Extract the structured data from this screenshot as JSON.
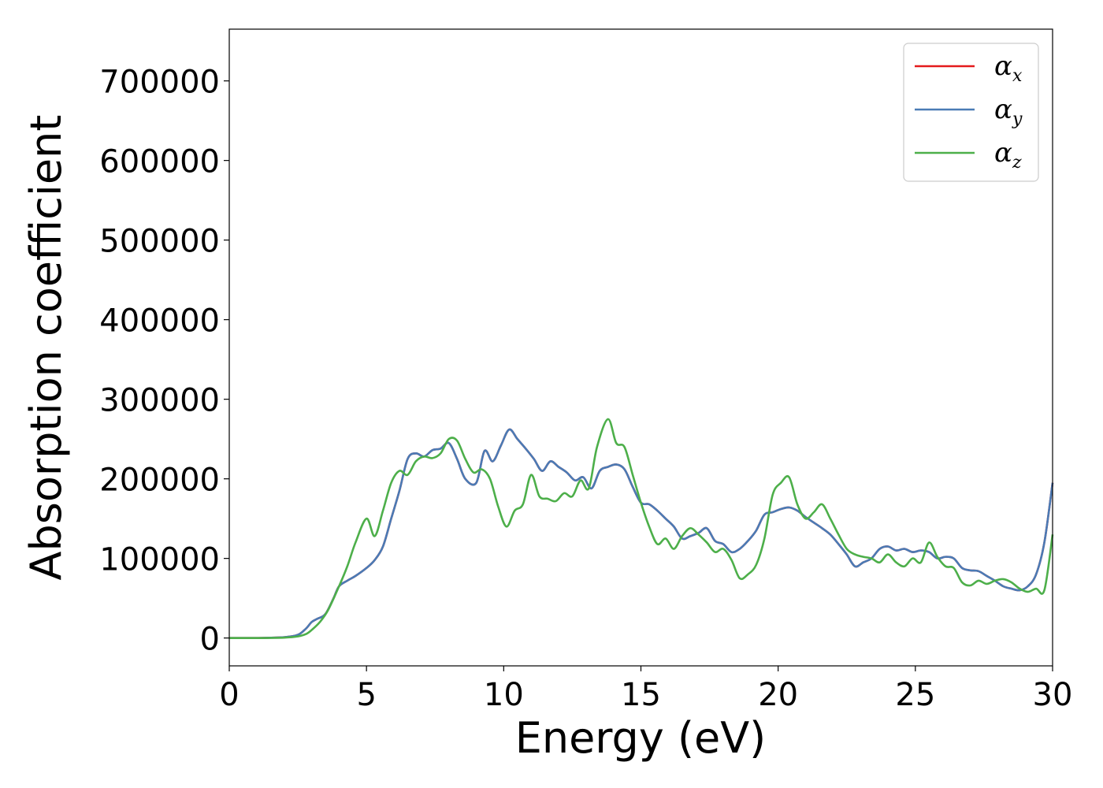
{
  "chart_data": {
    "type": "line",
    "xlabel": "Energy (eV)",
    "ylabel": "Absorption coefficient",
    "xlim": [
      0,
      30
    ],
    "ylim": [
      -35000,
      765000
    ],
    "xticks": [
      0,
      5,
      10,
      15,
      20,
      25,
      30
    ],
    "yticks": [
      0,
      100000,
      200000,
      300000,
      400000,
      500000,
      600000,
      700000
    ],
    "grid": false,
    "legend_position": "top-right",
    "series": [
      {
        "name": "α",
        "sub": "x",
        "color": "#e41a1c",
        "x": [
          0,
          1,
          2,
          2.5,
          2.8,
          3.0,
          3.2,
          3.5,
          3.8,
          4.0,
          4.3,
          4.6,
          5.0,
          5.3,
          5.6,
          5.9,
          6.2,
          6.5,
          6.8,
          7.1,
          7.4,
          7.7,
          8.0,
          8.3,
          8.6,
          9.0,
          9.3,
          9.6,
          9.9,
          10.2,
          10.5,
          10.8,
          11.1,
          11.4,
          11.7,
          12.0,
          12.3,
          12.6,
          12.9,
          13.2,
          13.5,
          13.8,
          14.1,
          14.4,
          14.7,
          15.0,
          15.3,
          15.6,
          15.9,
          16.2,
          16.5,
          16.8,
          17.1,
          17.4,
          17.7,
          18.0,
          18.3,
          18.6,
          18.9,
          19.2,
          19.5,
          19.8,
          20.1,
          20.4,
          20.7,
          21.0,
          21.3,
          21.6,
          21.9,
          22.2,
          22.5,
          22.8,
          23.1,
          23.4,
          23.7,
          24.0,
          24.3,
          24.6,
          24.9,
          25.2,
          25.5,
          25.8,
          26.1,
          26.4,
          26.7,
          27.0,
          27.3,
          27.6,
          27.9,
          28.2,
          28.5,
          28.8,
          29.1,
          29.4,
          29.7,
          30.0
        ],
        "y": [
          0,
          0,
          1000,
          4000,
          12000,
          20000,
          24000,
          30000,
          50000,
          65000,
          72000,
          78000,
          88000,
          98000,
          115000,
          150000,
          185000,
          225000,
          232000,
          228000,
          236000,
          238000,
          245000,
          225000,
          200000,
          195000,
          235000,
          222000,
          242000,
          262000,
          250000,
          238000,
          225000,
          210000,
          222000,
          215000,
          208000,
          198000,
          202000,
          188000,
          210000,
          215000,
          218000,
          212000,
          190000,
          170000,
          168000,
          160000,
          150000,
          140000,
          125000,
          128000,
          132000,
          138000,
          122000,
          118000,
          108000,
          112000,
          122000,
          135000,
          155000,
          158000,
          162000,
          164000,
          160000,
          152000,
          145000,
          138000,
          130000,
          118000,
          105000,
          90000,
          95000,
          100000,
          112000,
          115000,
          110000,
          112000,
          108000,
          110000,
          108000,
          100000,
          102000,
          100000,
          88000,
          85000,
          84000,
          78000,
          72000,
          65000,
          62000,
          60000,
          65000,
          80000,
          120000,
          195000
        ]
      },
      {
        "name": "α",
        "sub": "y",
        "color": "#4a7bb5",
        "x": [
          0,
          1,
          2,
          2.5,
          2.8,
          3.0,
          3.2,
          3.5,
          3.8,
          4.0,
          4.3,
          4.6,
          5.0,
          5.3,
          5.6,
          5.9,
          6.2,
          6.5,
          6.8,
          7.1,
          7.4,
          7.7,
          8.0,
          8.3,
          8.6,
          9.0,
          9.3,
          9.6,
          9.9,
          10.2,
          10.5,
          10.8,
          11.1,
          11.4,
          11.7,
          12.0,
          12.3,
          12.6,
          12.9,
          13.2,
          13.5,
          13.8,
          14.1,
          14.4,
          14.7,
          15.0,
          15.3,
          15.6,
          15.9,
          16.2,
          16.5,
          16.8,
          17.1,
          17.4,
          17.7,
          18.0,
          18.3,
          18.6,
          18.9,
          19.2,
          19.5,
          19.8,
          20.1,
          20.4,
          20.7,
          21.0,
          21.3,
          21.6,
          21.9,
          22.2,
          22.5,
          22.8,
          23.1,
          23.4,
          23.7,
          24.0,
          24.3,
          24.6,
          24.9,
          25.2,
          25.5,
          25.8,
          26.1,
          26.4,
          26.7,
          27.0,
          27.3,
          27.6,
          27.9,
          28.2,
          28.5,
          28.8,
          29.1,
          29.4,
          29.7,
          30.0
        ],
        "y": [
          0,
          0,
          1000,
          4000,
          12000,
          20000,
          24000,
          30000,
          50000,
          65000,
          72000,
          78000,
          88000,
          98000,
          115000,
          150000,
          185000,
          225000,
          232000,
          228000,
          236000,
          238000,
          245000,
          225000,
          200000,
          195000,
          235000,
          222000,
          242000,
          262000,
          250000,
          238000,
          225000,
          210000,
          222000,
          215000,
          208000,
          198000,
          202000,
          188000,
          210000,
          215000,
          218000,
          212000,
          190000,
          170000,
          168000,
          160000,
          150000,
          140000,
          125000,
          128000,
          132000,
          138000,
          122000,
          118000,
          108000,
          112000,
          122000,
          135000,
          155000,
          158000,
          162000,
          164000,
          160000,
          152000,
          145000,
          138000,
          130000,
          118000,
          105000,
          90000,
          95000,
          100000,
          112000,
          115000,
          110000,
          112000,
          108000,
          110000,
          108000,
          100000,
          102000,
          100000,
          88000,
          85000,
          84000,
          78000,
          72000,
          65000,
          62000,
          60000,
          65000,
          80000,
          120000,
          195000
        ]
      },
      {
        "name": "α",
        "sub": "z",
        "color": "#4daf4a",
        "x": [
          0,
          1,
          2,
          2.5,
          2.8,
          3.0,
          3.3,
          3.6,
          4.0,
          4.3,
          4.6,
          5.0,
          5.3,
          5.6,
          5.9,
          6.2,
          6.5,
          6.8,
          7.1,
          7.4,
          7.7,
          8.0,
          8.3,
          8.6,
          8.9,
          9.2,
          9.5,
          9.8,
          10.1,
          10.4,
          10.7,
          11.0,
          11.3,
          11.6,
          11.9,
          12.2,
          12.5,
          12.8,
          13.1,
          13.4,
          13.8,
          14.1,
          14.4,
          14.7,
          15.0,
          15.3,
          15.6,
          15.9,
          16.2,
          16.5,
          16.8,
          17.1,
          17.4,
          17.7,
          18.0,
          18.3,
          18.6,
          18.9,
          19.2,
          19.5,
          19.8,
          20.1,
          20.4,
          20.7,
          21.0,
          21.3,
          21.6,
          21.9,
          22.2,
          22.5,
          22.8,
          23.1,
          23.4,
          23.7,
          24.0,
          24.3,
          24.6,
          24.9,
          25.2,
          25.5,
          25.8,
          26.1,
          26.4,
          26.7,
          27.0,
          27.3,
          27.6,
          27.9,
          28.2,
          28.5,
          28.8,
          29.1,
          29.4,
          29.7,
          30.0
        ],
        "y": [
          0,
          0,
          500,
          2000,
          5000,
          10000,
          20000,
          35000,
          65000,
          90000,
          120000,
          150000,
          128000,
          160000,
          195000,
          210000,
          205000,
          222000,
          228000,
          226000,
          232000,
          250000,
          248000,
          225000,
          208000,
          212000,
          200000,
          165000,
          140000,
          160000,
          168000,
          205000,
          178000,
          175000,
          172000,
          182000,
          178000,
          198000,
          188000,
          240000,
          275000,
          245000,
          240000,
          205000,
          170000,
          140000,
          118000,
          125000,
          112000,
          128000,
          138000,
          130000,
          120000,
          108000,
          112000,
          98000,
          75000,
          80000,
          92000,
          125000,
          180000,
          195000,
          202000,
          168000,
          150000,
          158000,
          168000,
          150000,
          130000,
          112000,
          105000,
          102000,
          100000,
          95000,
          105000,
          95000,
          90000,
          100000,
          95000,
          120000,
          102000,
          90000,
          88000,
          70000,
          66000,
          72000,
          68000,
          72000,
          74000,
          70000,
          62000,
          58000,
          62000,
          60000,
          130000
        ]
      }
    ]
  }
}
